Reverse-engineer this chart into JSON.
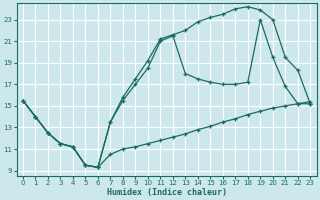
{
  "xlabel": "Humidex (Indice chaleur)",
  "bg_color": "#cde8ec",
  "grid_color": "#b8d8dc",
  "line_color": "#1a6b5e",
  "xlim": [
    -0.5,
    23.5
  ],
  "ylim": [
    8.5,
    24.5
  ],
  "xticks": [
    0,
    1,
    2,
    3,
    4,
    5,
    6,
    7,
    8,
    9,
    10,
    11,
    12,
    13,
    14,
    15,
    16,
    17,
    18,
    19,
    20,
    21,
    22,
    23
  ],
  "yticks": [
    9,
    11,
    13,
    15,
    17,
    19,
    21,
    23
  ],
  "line1_x": [
    0,
    1,
    2,
    3,
    4,
    5,
    6,
    7,
    8,
    9,
    10,
    11,
    12,
    13,
    14,
    15,
    16,
    17,
    18,
    19,
    20,
    21,
    22,
    23
  ],
  "line1_y": [
    15.5,
    14.0,
    12.5,
    11.5,
    11.2,
    9.5,
    9.3,
    10.5,
    11.0,
    11.2,
    11.5,
    11.8,
    12.1,
    12.4,
    12.8,
    13.1,
    13.5,
    13.8,
    14.2,
    14.5,
    14.8,
    15.0,
    15.2,
    15.4
  ],
  "line2_x": [
    0,
    1,
    2,
    3,
    4,
    5,
    6,
    7,
    8,
    9,
    10,
    11,
    12,
    13,
    14,
    15,
    16,
    17,
    18,
    19,
    20,
    21,
    22,
    23
  ],
  "line2_y": [
    15.5,
    14.0,
    12.5,
    11.5,
    11.2,
    9.5,
    9.3,
    13.5,
    15.8,
    17.5,
    19.2,
    21.2,
    21.6,
    22.0,
    22.8,
    23.2,
    23.5,
    24.0,
    24.2,
    23.9,
    23.0,
    19.5,
    18.3,
    15.2
  ],
  "line3_x": [
    0,
    1,
    2,
    3,
    4,
    5,
    6,
    7,
    8,
    9,
    10,
    11,
    12,
    13,
    14,
    15,
    16,
    17,
    18,
    19,
    20,
    21,
    22,
    23
  ],
  "line3_y": [
    15.5,
    14.0,
    12.5,
    11.5,
    11.2,
    9.5,
    9.3,
    13.5,
    15.5,
    17.0,
    18.5,
    21.0,
    21.5,
    18.0,
    17.5,
    17.2,
    17.0,
    17.0,
    17.2,
    23.0,
    19.5,
    16.8,
    15.2,
    15.2
  ]
}
